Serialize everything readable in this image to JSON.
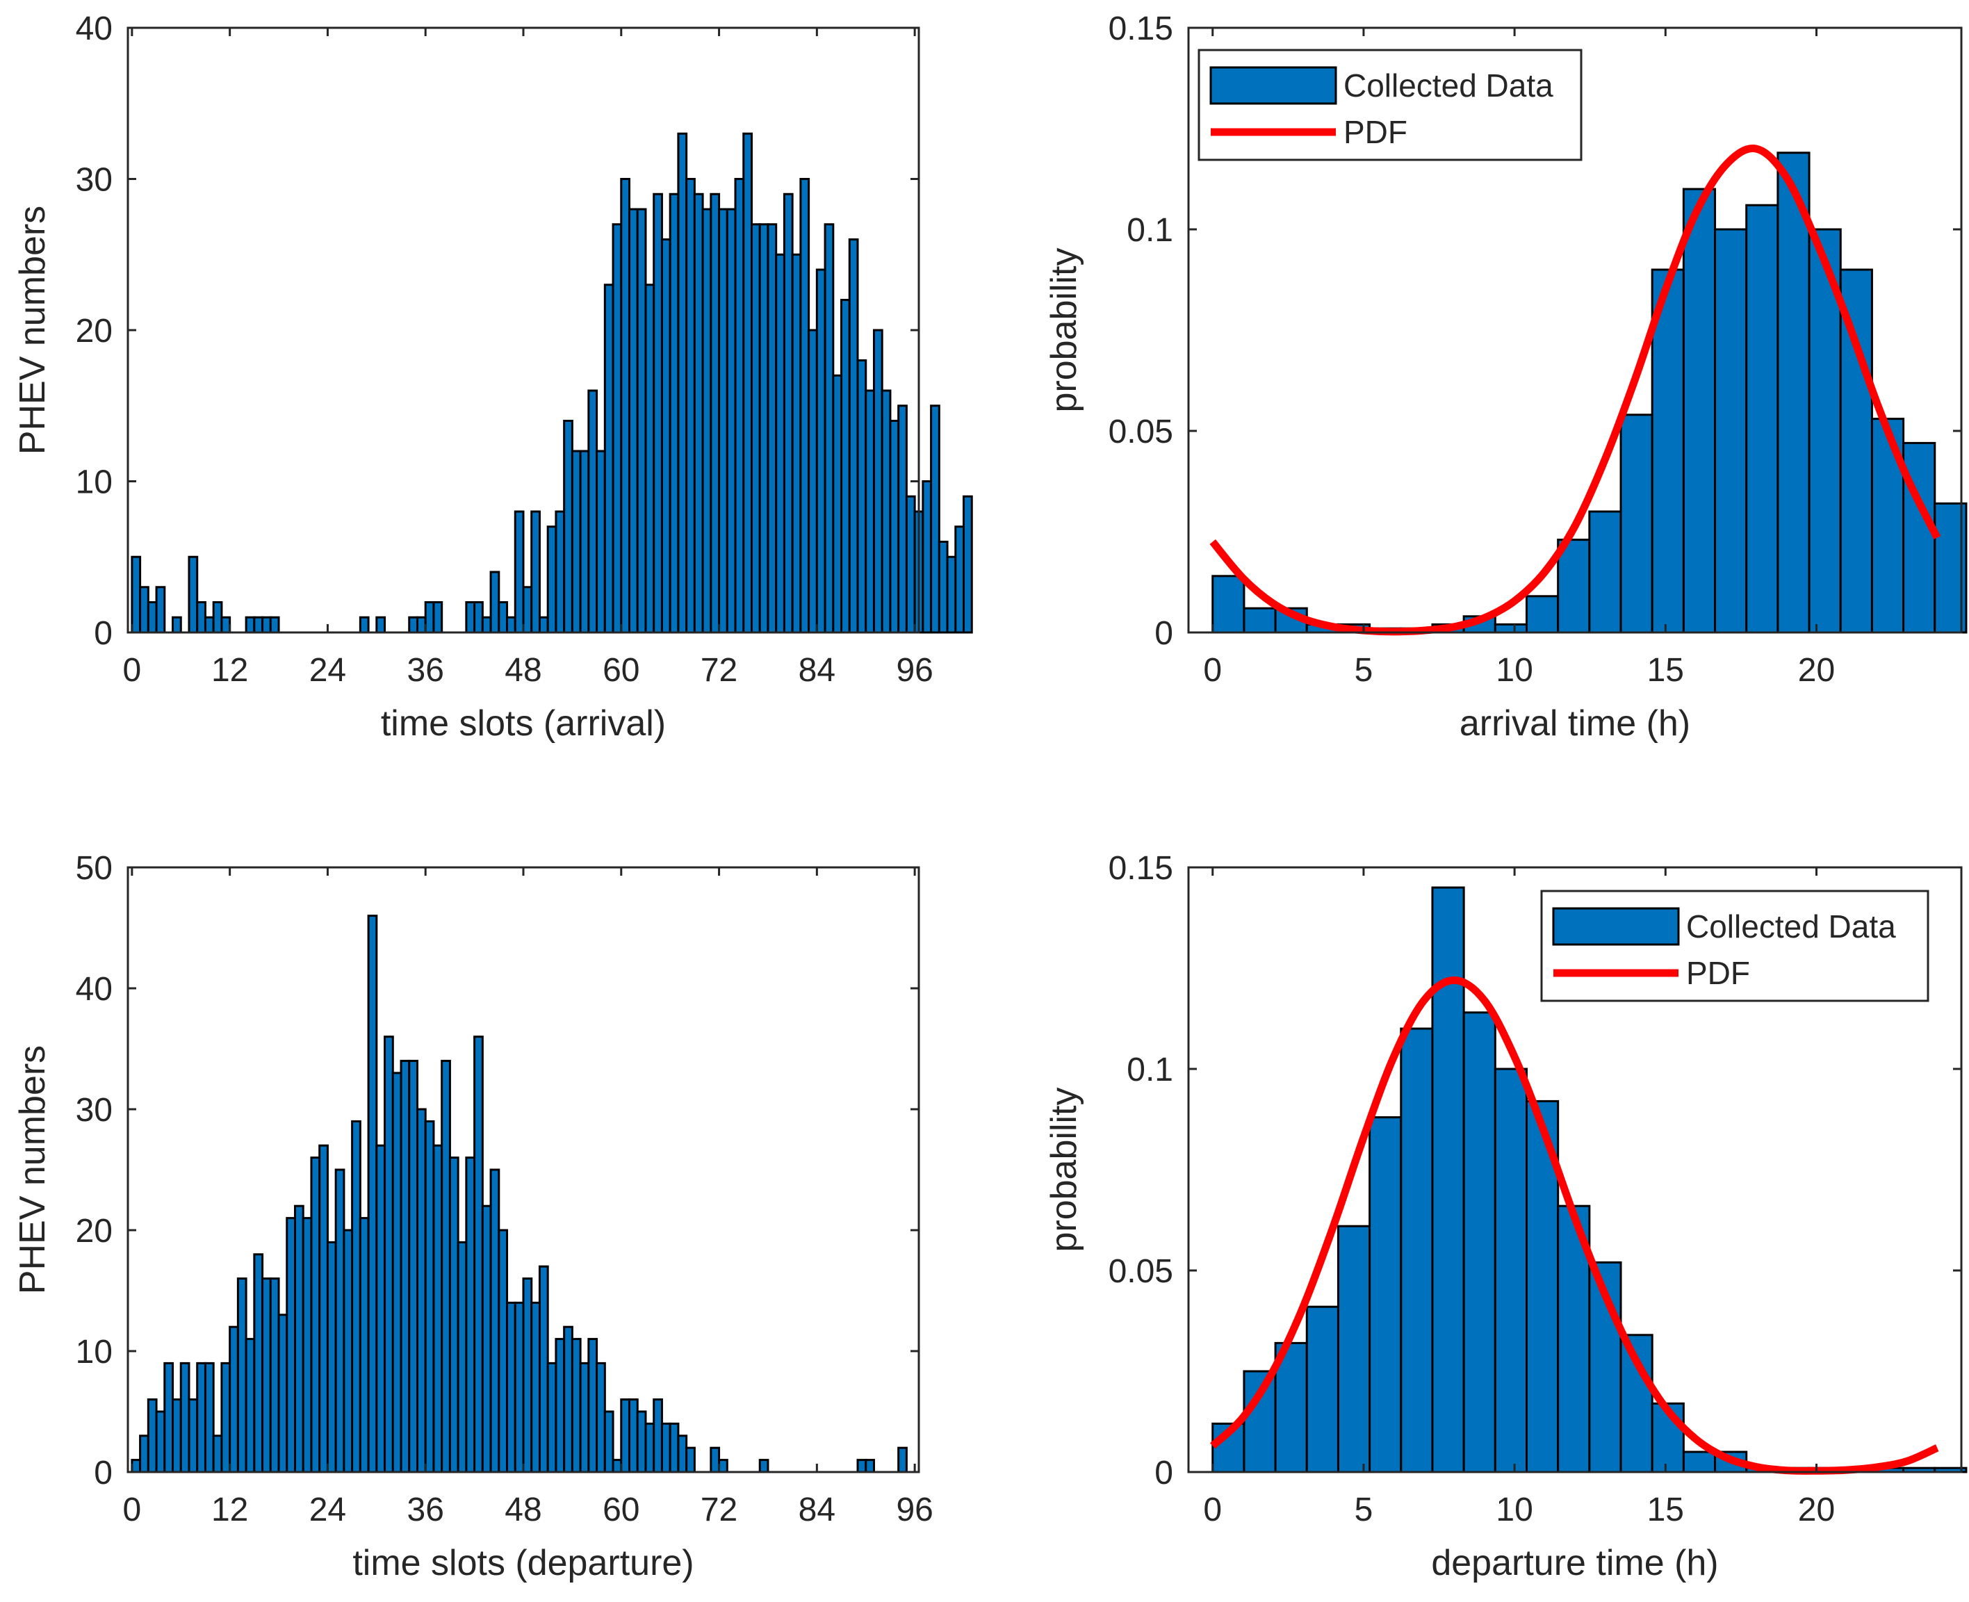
{
  "figure": {
    "background": "#ffffff"
  },
  "colors": {
    "bar": "#0072BD",
    "bar_edge": "#000000",
    "pdf": "#FF0000",
    "axis": "#262626"
  },
  "chart_data": [
    {
      "id": "arrival-slots",
      "type": "bar",
      "title": "",
      "xlabel": "time slots (arrival)",
      "ylabel": "PHEV numbers",
      "xlim": [
        -0.5,
        96.5
      ],
      "ylim": [
        0,
        40
      ],
      "xticks": [
        0,
        12,
        24,
        36,
        48,
        60,
        72,
        84,
        96
      ],
      "yticks": [
        0,
        10,
        20,
        30,
        40
      ],
      "bin_start": 0,
      "bin_width": 1,
      "values": [
        5,
        3,
        2,
        3,
        0,
        1,
        0,
        5,
        2,
        1,
        2,
        1,
        0,
        0,
        1,
        1,
        1,
        1,
        0,
        0,
        0,
        0,
        0,
        0,
        0,
        0,
        0,
        0,
        1,
        0,
        1,
        0,
        0,
        0,
        1,
        1,
        2,
        2,
        0,
        0,
        0,
        2,
        2,
        1,
        4,
        2,
        1,
        8,
        3,
        8,
        1,
        7,
        8,
        14,
        12,
        12,
        16,
        12,
        23,
        27,
        30,
        28,
        28,
        23,
        29,
        26,
        29,
        33,
        30,
        29,
        28,
        29,
        28,
        28,
        30,
        33,
        27,
        27,
        27,
        25,
        29,
        25,
        30,
        20,
        24,
        27,
        17,
        22,
        26,
        18,
        16,
        20,
        16,
        14,
        15,
        9,
        8,
        10,
        15,
        6,
        5,
        7,
        9
      ],
      "legend": null
    },
    {
      "id": "arrival-prob",
      "type": "bar",
      "title": "",
      "xlabel": "arrival time (h)",
      "ylabel": "probability",
      "xlim": [
        -0.8,
        24.8
      ],
      "ylim": [
        0,
        0.15
      ],
      "xticks": [
        0,
        5,
        10,
        15,
        20
      ],
      "yticks": [
        0,
        0.05,
        0.1,
        0.15
      ],
      "ytick_labels": [
        "0",
        "0.05",
        "0.1",
        "0.15"
      ],
      "bin_start": 0,
      "bin_width": 1.04,
      "values": [
        0.014,
        0.006,
        0.006,
        0.002,
        0.002,
        0.001,
        0.001,
        0.002,
        0.004,
        0.002,
        0.009,
        0.023,
        0.03,
        0.054,
        0.09,
        0.11,
        0.1,
        0.106,
        0.119,
        0.1,
        0.09,
        0.053,
        0.047,
        0.032
      ],
      "pdf": {
        "x": [
          0,
          1,
          2,
          3,
          4,
          5,
          6,
          7,
          8,
          9,
          10,
          11,
          12,
          13,
          14,
          15,
          16,
          17,
          18,
          19,
          20,
          21,
          22,
          23,
          24
        ],
        "y": [
          0.0225,
          0.0135,
          0.0072,
          0.0034,
          0.0014,
          0.0005,
          0.0002,
          0.0005,
          0.0014,
          0.0036,
          0.0078,
          0.015,
          0.0264,
          0.043,
          0.063,
          0.085,
          0.104,
          0.116,
          0.12,
          0.113,
          0.097,
          0.078,
          0.057,
          0.0385,
          0.0235
        ]
      },
      "legend": {
        "position": "top-left",
        "items": [
          "Collected Data",
          "PDF"
        ]
      }
    },
    {
      "id": "departure-slots",
      "type": "bar",
      "title": "",
      "xlabel": "time slots (departure)",
      "ylabel": "PHEV numbers",
      "xlim": [
        -0.5,
        96.5
      ],
      "ylim": [
        0,
        50
      ],
      "xticks": [
        0,
        12,
        24,
        36,
        48,
        60,
        72,
        84,
        96
      ],
      "yticks": [
        0,
        10,
        20,
        30,
        40,
        50
      ],
      "bin_start": 0,
      "bin_width": 1,
      "values": [
        1,
        3,
        6,
        5,
        9,
        6,
        9,
        6,
        9,
        9,
        3,
        9,
        12,
        16,
        11,
        18,
        16,
        16,
        13,
        21,
        22,
        21,
        26,
        27,
        19,
        25,
        20,
        29,
        21,
        46,
        27,
        36,
        33,
        34,
        34,
        30,
        29,
        27,
        34,
        26,
        19,
        26,
        36,
        22,
        25,
        20,
        14,
        14,
        16,
        14,
        17,
        9,
        11,
        12,
        11,
        9,
        11,
        9,
        5,
        1,
        6,
        6,
        5,
        4,
        6,
        4,
        4,
        3,
        2,
        0,
        0,
        2,
        1,
        0,
        0,
        0,
        0,
        1,
        0,
        0,
        0,
        0,
        0,
        0,
        0,
        0,
        0,
        0,
        0,
        1,
        1,
        0,
        0,
        0,
        2
      ],
      "legend": null
    },
    {
      "id": "departure-prob",
      "type": "bar",
      "title": "",
      "xlabel": "departure time (h)",
      "ylabel": "probability",
      "xlim": [
        -0.8,
        24.8
      ],
      "ylim": [
        0,
        0.15
      ],
      "xticks": [
        0,
        5,
        10,
        15,
        20
      ],
      "yticks": [
        0,
        0.05,
        0.1,
        0.15
      ],
      "ytick_labels": [
        "0",
        "0.05",
        "0.1",
        "0.15"
      ],
      "bin_start": 0,
      "bin_width": 1.04,
      "values": [
        0.012,
        0.025,
        0.032,
        0.041,
        0.061,
        0.088,
        0.11,
        0.145,
        0.114,
        0.1,
        0.092,
        0.066,
        0.052,
        0.034,
        0.017,
        0.005,
        0.005,
        0.001,
        0.001,
        0.001,
        0.001,
        0.001,
        0.001,
        0.001
      ],
      "pdf": {
        "x": [
          0,
          1,
          2,
          3,
          4,
          5,
          6,
          7,
          8,
          9,
          10,
          11,
          12,
          13,
          14,
          15,
          16,
          17,
          18,
          19,
          20,
          21,
          22,
          23,
          24
        ],
        "y": [
          0.0065,
          0.0135,
          0.025,
          0.041,
          0.061,
          0.083,
          0.103,
          0.117,
          0.122,
          0.117,
          0.103,
          0.084,
          0.063,
          0.044,
          0.028,
          0.016,
          0.0082,
          0.0036,
          0.0013,
          0.0004,
          0.0003,
          0.0005,
          0.0012,
          0.0027,
          0.006
        ]
      },
      "legend": {
        "position": "top-right",
        "items": [
          "Collected Data",
          "PDF"
        ]
      }
    }
  ]
}
